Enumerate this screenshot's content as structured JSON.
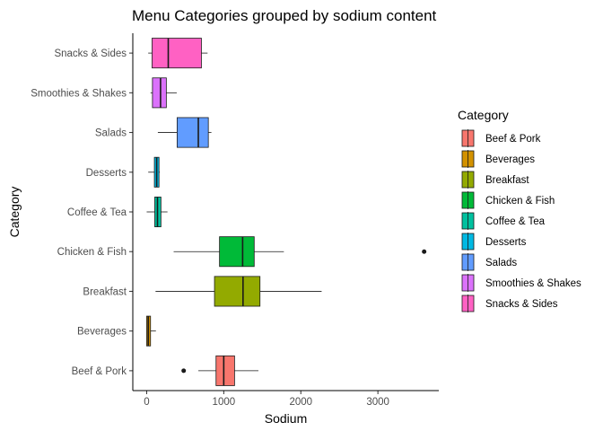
{
  "chart_data": {
    "type": "boxplot",
    "orientation": "horizontal",
    "title": "Menu Categories grouped by sodium content",
    "xlabel": "Sodium",
    "ylabel": "Category",
    "xlim": [
      -180,
      3790
    ],
    "xticks": [
      0,
      1000,
      2000,
      3000
    ],
    "xtick_labels": [
      "0",
      "1000",
      "2000",
      "3000"
    ],
    "grid": false,
    "legend": {
      "title": "Category",
      "position": "right"
    },
    "categories": [
      "Beef & Pork",
      "Beverages",
      "Breakfast",
      "Chicken & Fish",
      "Coffee & Tea",
      "Desserts",
      "Salads",
      "Smoothies & Shakes",
      "Snacks & Sides"
    ],
    "series": [
      {
        "name": "Beef & Pork",
        "color": "#F8766D",
        "whisker_low": 670,
        "q1": 900,
        "median": 1000,
        "q3": 1140,
        "whisker_high": 1450,
        "outliers": [
          480
        ]
      },
      {
        "name": "Beverages",
        "color": "#D39200",
        "whisker_low": 0,
        "q1": 0,
        "median": 20,
        "q3": 50,
        "whisker_high": 120,
        "outliers": []
      },
      {
        "name": "Breakfast",
        "color": "#93AA00",
        "whisker_low": 115,
        "q1": 880,
        "median": 1250,
        "q3": 1470,
        "whisker_high": 2270,
        "outliers": []
      },
      {
        "name": "Chicken & Fish",
        "color": "#00BA38",
        "whisker_low": 350,
        "q1": 945,
        "median": 1245,
        "q3": 1395,
        "whisker_high": 1780,
        "outliers": [
          3600
        ]
      },
      {
        "name": "Coffee & Tea",
        "color": "#00C19F",
        "whisker_low": 0,
        "q1": 105,
        "median": 140,
        "q3": 185,
        "whisker_high": 270,
        "outliers": []
      },
      {
        "name": "Desserts",
        "color": "#00B9E3",
        "whisker_low": 20,
        "q1": 100,
        "median": 130,
        "q3": 160,
        "whisker_high": 170,
        "outliers": []
      },
      {
        "name": "Salads",
        "color": "#619CFF",
        "whisker_low": 145,
        "q1": 395,
        "median": 670,
        "q3": 800,
        "whisker_high": 840,
        "outliers": []
      },
      {
        "name": "Smoothies & Shakes",
        "color": "#DB72FB",
        "whisker_low": 50,
        "q1": 75,
        "median": 180,
        "q3": 255,
        "whisker_high": 390,
        "outliers": []
      },
      {
        "name": "Snacks & Sides",
        "color": "#FF61C3",
        "whisker_low": 20,
        "q1": 70,
        "median": 280,
        "q3": 710,
        "whisker_high": 790,
        "outliers": []
      }
    ]
  }
}
